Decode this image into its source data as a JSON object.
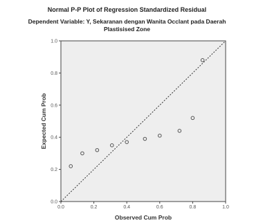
{
  "title_line1": "Normal P-P Plot of Regression Standardized Residual",
  "title_line2": "Dependent Variable: Y, Sekaranan dengan Wanita Occlant pada Daerah",
  "title_line3": "Plastisised Zone",
  "chart_data": {
    "type": "scatter",
    "xlabel": "Observed Cum Prob",
    "ylabel": "Expected Cum Prob",
    "xlim": [
      0,
      1
    ],
    "ylim": [
      0,
      1
    ],
    "x_ticks": [
      "0.0",
      "0.2",
      "0.4",
      "0.6",
      "0.8",
      "1.0"
    ],
    "y_ticks": [
      "0.0",
      "0.2",
      "0.4",
      "0.6",
      "0.8",
      "1.0"
    ],
    "reference_line": "diagonal",
    "grid": false,
    "points": [
      {
        "x": 0.06,
        "y": 0.22
      },
      {
        "x": 0.13,
        "y": 0.3
      },
      {
        "x": 0.22,
        "y": 0.32
      },
      {
        "x": 0.31,
        "y": 0.35
      },
      {
        "x": 0.4,
        "y": 0.37
      },
      {
        "x": 0.51,
        "y": 0.39
      },
      {
        "x": 0.6,
        "y": 0.41
      },
      {
        "x": 0.72,
        "y": 0.44
      },
      {
        "x": 0.8,
        "y": 0.52
      },
      {
        "x": 0.86,
        "y": 0.88
      }
    ],
    "colors": {
      "plot_bg": "#eeeeee",
      "marker": "#555555",
      "line": "#333333",
      "border": "#444444"
    }
  }
}
